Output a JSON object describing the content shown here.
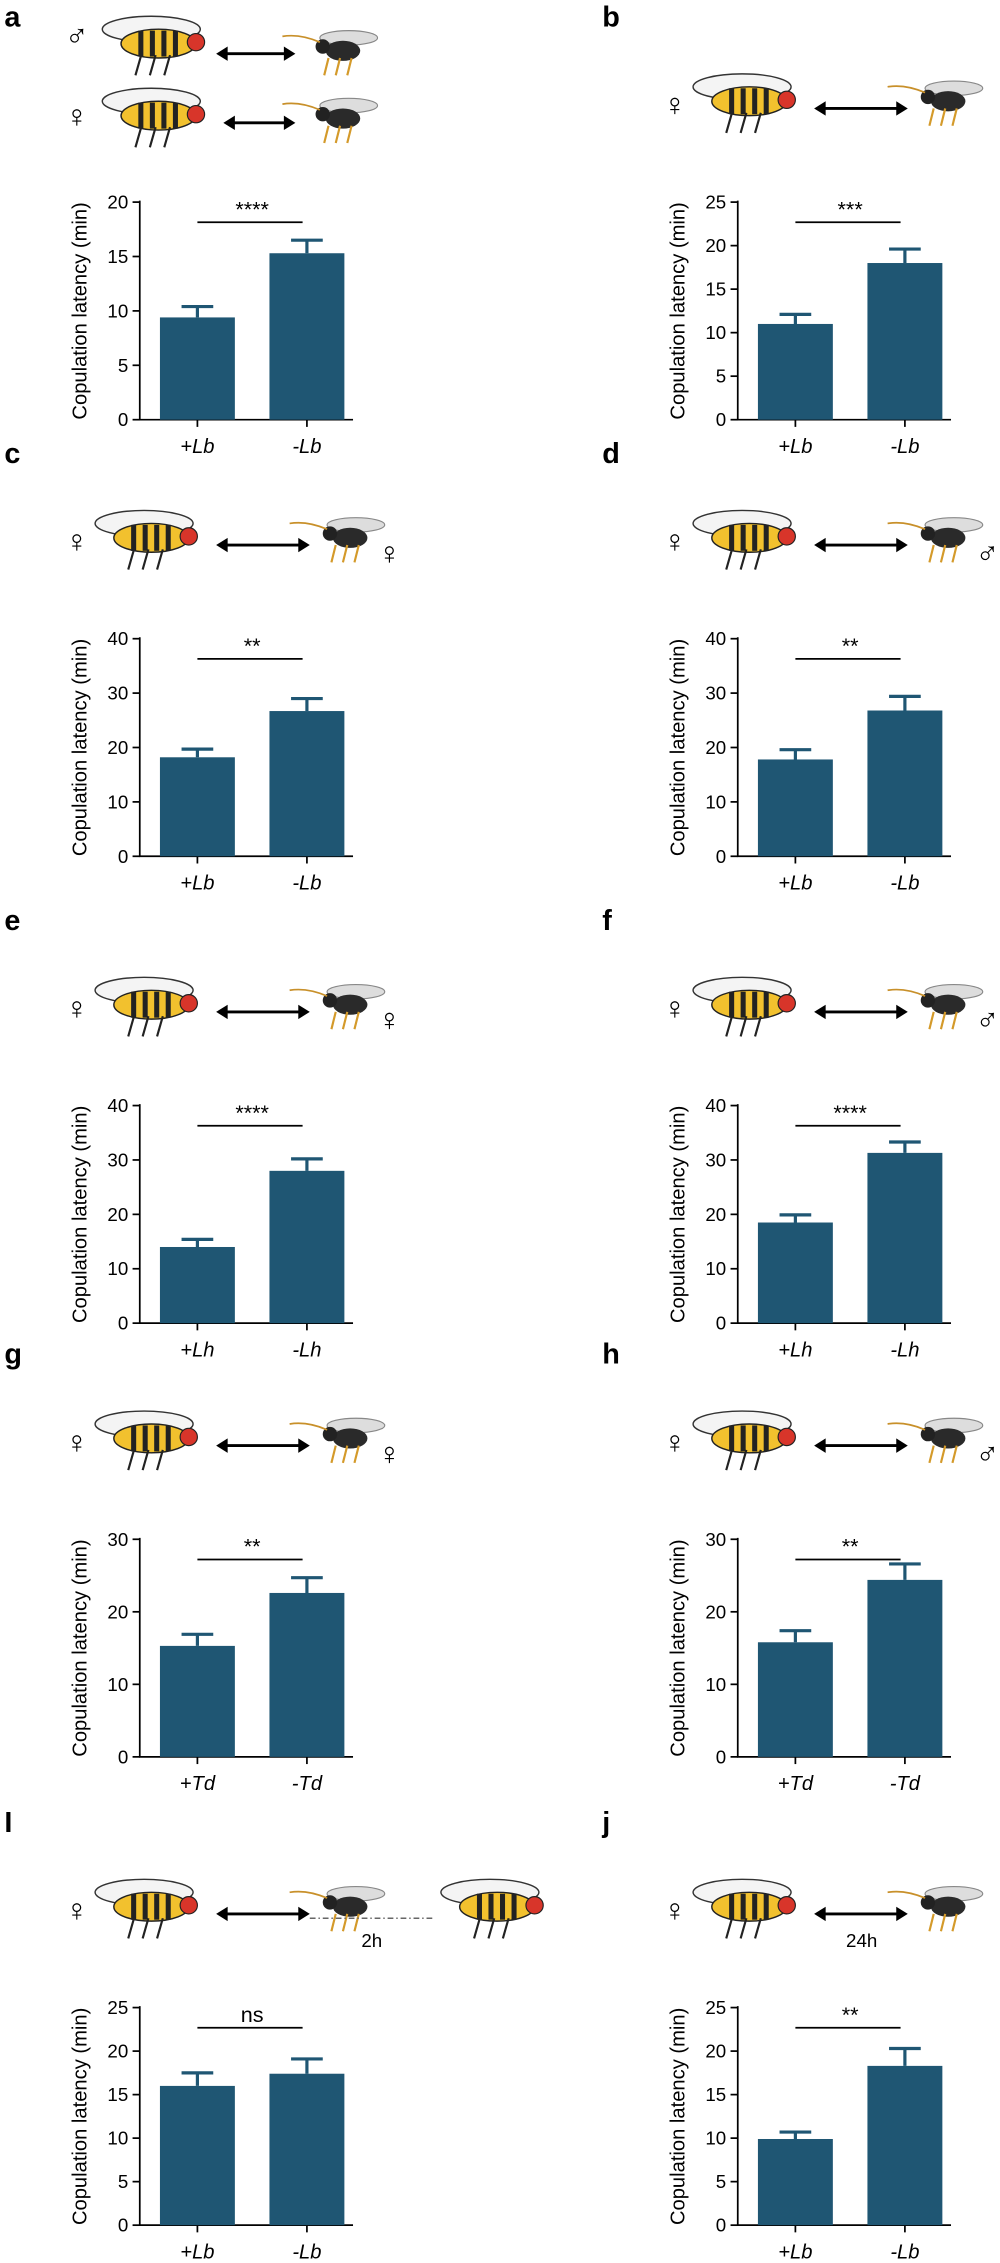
{
  "chart_data": [
    {
      "type": "bar",
      "panel": "a",
      "symbols": [
        "♂",
        "♀"
      ],
      "ylabel": "Copulation latency (min)",
      "categories": [
        "+Lb",
        "-Lb"
      ],
      "values": [
        9.4,
        15.3
      ],
      "errors": [
        1.0,
        1.2
      ],
      "color": "#1f5673",
      "ylim": [
        0,
        20
      ],
      "yticks": [
        0,
        5,
        10,
        15,
        20
      ],
      "annotation": "****"
    },
    {
      "type": "bar",
      "panel": "b",
      "symbols": [
        "♀"
      ],
      "ylabel": "Copulation latency (min)",
      "categories": [
        "+Lb",
        "-Lb"
      ],
      "values": [
        11.0,
        18.0
      ],
      "errors": [
        1.1,
        1.6
      ],
      "color": "#1f5673",
      "ylim": [
        0,
        25
      ],
      "yticks": [
        0,
        5,
        10,
        15,
        20,
        25
      ],
      "annotation": "***"
    },
    {
      "type": "bar",
      "panel": "c",
      "symbols": [
        "♀",
        "♀"
      ],
      "ylabel": "Copulation latency (min)",
      "categories": [
        "+Lb",
        "-Lb"
      ],
      "values": [
        18.2,
        26.7
      ],
      "errors": [
        1.5,
        2.3
      ],
      "color": "#1f5673",
      "ylim": [
        0,
        40
      ],
      "yticks": [
        0,
        10,
        20,
        30,
        40
      ],
      "annotation": "**"
    },
    {
      "type": "bar",
      "panel": "d",
      "symbols": [
        "♀",
        "♂"
      ],
      "ylabel": "Copulation latency (min)",
      "categories": [
        "+Lb",
        "-Lb"
      ],
      "values": [
        17.8,
        26.8
      ],
      "errors": [
        1.8,
        2.6
      ],
      "color": "#1f5673",
      "ylim": [
        0,
        40
      ],
      "yticks": [
        0,
        10,
        20,
        30,
        40
      ],
      "annotation": "**"
    },
    {
      "type": "bar",
      "panel": "e",
      "symbols": [
        "♀",
        "♀"
      ],
      "ylabel": "Copulation latency (min)",
      "categories": [
        "+Lh",
        "-Lh"
      ],
      "values": [
        14.0,
        28.0
      ],
      "errors": [
        1.4,
        2.2
      ],
      "color": "#1f5673",
      "ylim": [
        0,
        40
      ],
      "yticks": [
        0,
        10,
        20,
        30,
        40
      ],
      "annotation": "****"
    },
    {
      "type": "bar",
      "panel": "f",
      "symbols": [
        "♀",
        "♂"
      ],
      "ylabel": "Copulation latency (min)",
      "categories": [
        "+Lh",
        "-Lh"
      ],
      "values": [
        18.5,
        31.3
      ],
      "errors": [
        1.4,
        2.0
      ],
      "color": "#1f5673",
      "ylim": [
        0,
        40
      ],
      "yticks": [
        0,
        10,
        20,
        30,
        40
      ],
      "annotation": "****"
    },
    {
      "type": "bar",
      "panel": "g",
      "symbols": [
        "♀",
        "♀"
      ],
      "ylabel": "Copulation latency (min)",
      "categories": [
        "+Td",
        "-Td"
      ],
      "values": [
        15.3,
        22.6
      ],
      "errors": [
        1.6,
        2.1
      ],
      "color": "#1f5673",
      "ylim": [
        0,
        30
      ],
      "yticks": [
        0,
        10,
        20,
        30
      ],
      "annotation": "**"
    },
    {
      "type": "bar",
      "panel": "h",
      "symbols": [
        "♀",
        "♂"
      ],
      "ylabel": "Copulation latency (min)",
      "categories": [
        "+Td",
        "-Td"
      ],
      "values": [
        15.8,
        24.4
      ],
      "errors": [
        1.6,
        2.2
      ],
      "color": "#1f5673",
      "ylim": [
        0,
        30
      ],
      "yticks": [
        0,
        10,
        20,
        30
      ],
      "annotation": "**"
    },
    {
      "type": "bar",
      "panel": "I",
      "symbols": [
        "♀"
      ],
      "time_label": "2h",
      "ylabel": "Copulation latency (min)",
      "categories": [
        "+Lb",
        "-Lb"
      ],
      "values": [
        16.0,
        17.4
      ],
      "errors": [
        1.5,
        1.7
      ],
      "color": "#1f5673",
      "ylim": [
        0,
        25
      ],
      "yticks": [
        0,
        5,
        10,
        15,
        20,
        25
      ],
      "annotation": "ns"
    },
    {
      "type": "bar",
      "panel": "j",
      "symbols": [
        "♀"
      ],
      "time_label": "24h",
      "ylabel": "Copulation latency (min)",
      "categories": [
        "+Lb",
        "-Lb"
      ],
      "values": [
        9.9,
        18.3
      ],
      "errors": [
        0.8,
        2.0
      ],
      "color": "#1f5673",
      "ylim": [
        0,
        25
      ],
      "yticks": [
        0,
        5,
        10,
        15,
        20,
        25
      ],
      "annotation": "**"
    }
  ]
}
